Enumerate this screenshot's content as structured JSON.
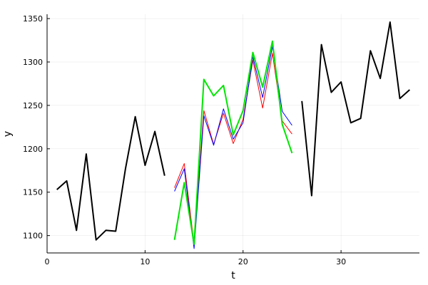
{
  "chart_data": {
    "type": "line",
    "xlabel": "t",
    "ylabel": "y",
    "xlim": [
      0,
      38
    ],
    "ylim": [
      1080,
      1355
    ],
    "x_ticks": [
      0,
      10,
      20,
      30
    ],
    "y_ticks": [
      1100,
      1150,
      1200,
      1250,
      1300,
      1350
    ],
    "grid": true,
    "legend": "none",
    "series": [
      {
        "color": "#000000",
        "width": 2,
        "x": [
          1,
          2,
          3,
          4,
          5,
          6,
          7,
          8,
          9,
          10,
          11,
          12
        ],
        "y": [
          1153,
          1163,
          1106,
          1194,
          1095,
          1106,
          1105,
          1177,
          1237,
          1181,
          1220,
          1169
        ]
      },
      {
        "color": "#ff0000",
        "width": 1,
        "x": [
          13,
          14,
          15,
          16,
          17,
          18,
          19,
          20,
          21,
          22,
          23,
          24,
          25
        ],
        "y": [
          1155,
          1183,
          1090,
          1244,
          1205,
          1241,
          1206,
          1234,
          1302,
          1247,
          1310,
          1232,
          1217
        ]
      },
      {
        "color": "#0000ff",
        "width": 1,
        "x": [
          13,
          14,
          15,
          16,
          17,
          18,
          19,
          20,
          21,
          22,
          23,
          24,
          25
        ],
        "y": [
          1151,
          1177,
          1085,
          1238,
          1204,
          1246,
          1211,
          1230,
          1306,
          1259,
          1318,
          1243,
          1227
        ]
      },
      {
        "color": "#00e600",
        "width": 2,
        "x": [
          13,
          14,
          15,
          16,
          17,
          18,
          19,
          20,
          21,
          22,
          23,
          24,
          25
        ],
        "y": [
          1095,
          1161,
          1090,
          1280,
          1261,
          1273,
          1216,
          1244,
          1311,
          1271,
          1324,
          1228,
          1195
        ]
      },
      {
        "color": "#000000",
        "width": 2,
        "x": [
          26,
          27,
          28,
          29,
          30,
          31,
          32,
          33,
          34,
          35,
          36,
          37
        ],
        "y": [
          1255,
          1146,
          1320,
          1265,
          1277,
          1230,
          1235,
          1313,
          1281,
          1346,
          1258,
          1268
        ]
      }
    ]
  }
}
